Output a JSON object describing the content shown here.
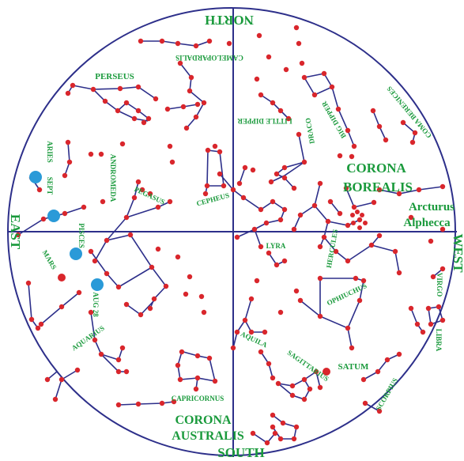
{
  "directions": {
    "north": "NORTH",
    "south": "SOUTH",
    "east": "EAST",
    "west": "WEST"
  },
  "constellations": {
    "perseus": "PERSEUS",
    "camelopardalis": "CAMELOPARDALIS",
    "aries": "ARIES",
    "andromeda": "ANDROMEDA",
    "pegasus": "PEGASUS",
    "cepheus": "CEPHEUS",
    "pisces": "PISCES",
    "aquarius": "AQUARIUS",
    "capricornus": "CAPRICORNUS",
    "aquila": "AQUILA",
    "lyra": "LYRA",
    "little_dipper": "LITTLE DIPPER",
    "draco": "DRACO",
    "big_dipper": "BIG DIPPER",
    "coma_berenices": "COMA BERENICES",
    "hercules": "HERCULES",
    "ophiuchus": "OPHIUCHUS",
    "sagittarius": "SAGITTARIUS",
    "scorpius": "SCORPIUS",
    "libra": "LIBRA",
    "virgo": "VIRGO"
  },
  "large_labels": {
    "corona_borealis_1": "CORONA",
    "corona_borealis_2": "BOREALIS",
    "arcturus": "Arcturus",
    "alphecca": "Alphecca",
    "corona_australis_1": "CORONA",
    "corona_australis_2": "AUSTRALIS"
  },
  "planets": {
    "mars": "MARS",
    "saturn": "SATUM"
  },
  "dates": {
    "sept": "SEPT",
    "aug28": "AUG 28"
  },
  "colors": {
    "stars": "#d9262c",
    "lines": "#2d2f8a",
    "labels": "#1a9a3c",
    "planet_path": "#2a9ad8",
    "frame": "#2d2f8a"
  }
}
